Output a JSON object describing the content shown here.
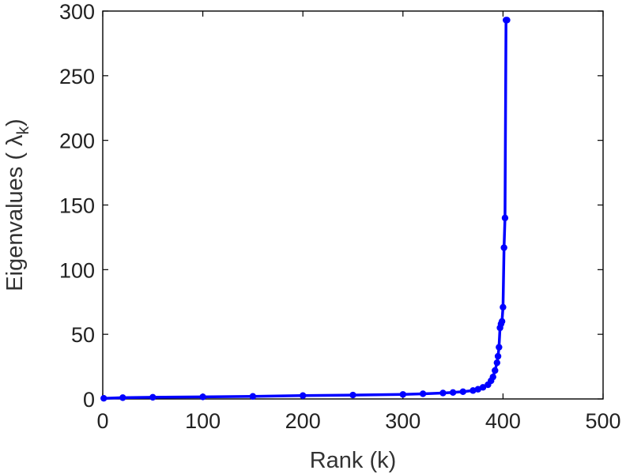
{
  "chart_data": {
    "type": "line",
    "xlabel": "Rank (k)",
    "ylabel": "Eigenvalues ( λ",
    "ylabel_subscript": "k",
    "ylabel_close": ")",
    "xlim": [
      0,
      500
    ],
    "ylim": [
      0,
      300
    ],
    "xticks": [
      "0",
      "100",
      "200",
      "300",
      "400",
      "500"
    ],
    "yticks": [
      "0",
      "50",
      "100",
      "150",
      "200",
      "250",
      "300"
    ],
    "grid": false,
    "series": [
      {
        "color": "#0000ff",
        "marker": "circle",
        "x": [
          1,
          20,
          50,
          100,
          150,
          200,
          250,
          300,
          320,
          340,
          350,
          360,
          370,
          375,
          380,
          385,
          388,
          390,
          392,
          394,
          395,
          396,
          397,
          398,
          399,
          400,
          401,
          402,
          403,
          404
        ],
        "y": [
          0.5,
          1.0,
          1.3,
          1.6,
          2.0,
          2.6,
          3.0,
          3.5,
          4.0,
          4.6,
          5.0,
          5.6,
          6.5,
          7.5,
          9.0,
          11,
          14,
          17,
          22,
          28,
          33,
          40,
          55,
          58,
          60,
          71,
          117,
          140,
          293,
          293
        ]
      }
    ]
  }
}
